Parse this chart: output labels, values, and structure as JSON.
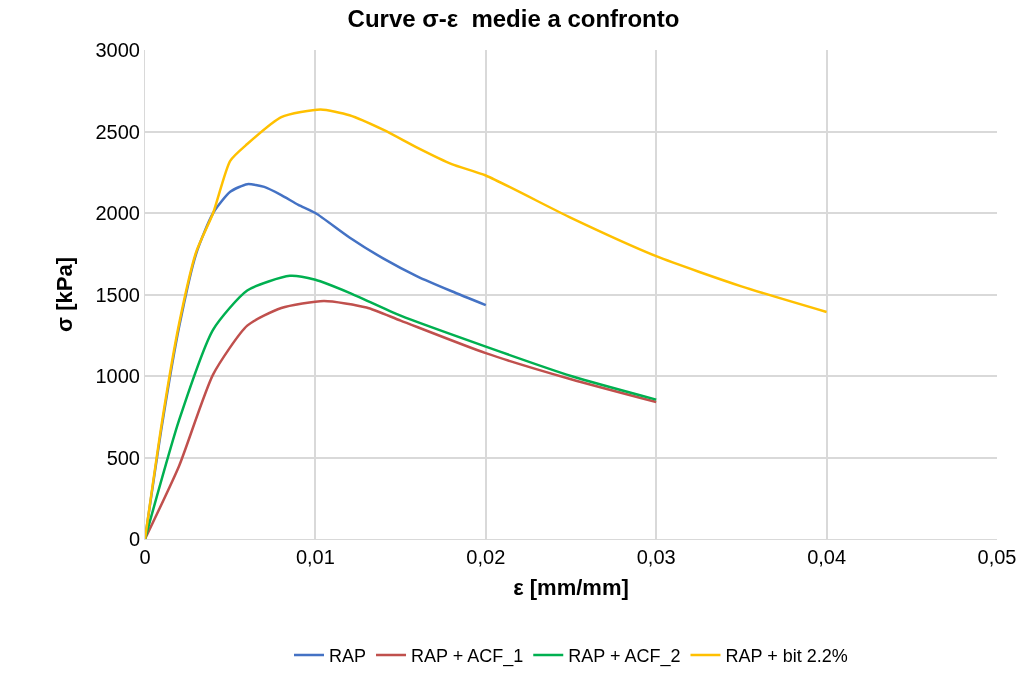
{
  "chart_data": {
    "type": "line",
    "title": "Curve σ-ε  medie a confronto",
    "xlabel": "ε [mm/mm]",
    "ylabel": "σ [kPa]",
    "xlim": [
      0,
      0.05
    ],
    "xticks": [
      0,
      {
        "value": 0.01,
        "label": "0,01"
      },
      {
        "value": 0.02,
        "label": "0,02"
      },
      {
        "value": 0.03,
        "label": "0,03"
      },
      {
        "value": 0.04,
        "label": "0,04"
      },
      {
        "value": 0.05,
        "label": "0,05"
      }
    ],
    "ylim": [
      0,
      3000
    ],
    "yticks": [
      0,
      500,
      1000,
      1500,
      2000,
      2500,
      3000
    ],
    "grid": true,
    "legend": "bottom",
    "marker": "none",
    "line_style": "solid",
    "series": [
      {
        "name": "RAP",
        "color": "#4472c4",
        "x": [
          0,
          0.001,
          0.002,
          0.003,
          0.004,
          0.005,
          0.006,
          0.007,
          0.008,
          0.009,
          0.01,
          0.012,
          0.014,
          0.016,
          0.018,
          0.02
        ],
        "values": [
          0,
          700,
          1300,
          1750,
          2000,
          2130,
          2177,
          2160,
          2110,
          2050,
          2000,
          1850,
          1720,
          1610,
          1520,
          1435
        ]
      },
      {
        "name": "RAP + ACF_1",
        "color": "#c0504d",
        "x": [
          0,
          0.002,
          0.004,
          0.006,
          0.008,
          0.0105,
          0.013,
          0.015,
          0.02,
          0.025,
          0.03
        ],
        "values": [
          0,
          448,
          1010,
          1309,
          1417,
          1460,
          1420,
          1340,
          1140,
          980,
          840
        ]
      },
      {
        "name": "RAP + ACF_2",
        "color": "#00b050",
        "x": [
          0,
          0.002,
          0.004,
          0.006,
          0.0085,
          0.01,
          0.012,
          0.015,
          0.02,
          0.025,
          0.03
        ],
        "values": [
          0,
          729,
          1285,
          1525,
          1615,
          1590,
          1510,
          1370,
          1180,
          1000,
          855
        ]
      },
      {
        "name": "RAP + bit 2.2%",
        "color": "#ffc000",
        "x": [
          0,
          0.001,
          0.002,
          0.003,
          0.004,
          0.005,
          0.006,
          0.008,
          0.0103,
          0.012,
          0.014,
          0.016,
          0.018,
          0.02,
          0.025,
          0.03,
          0.035,
          0.04
        ],
        "values": [
          0,
          720,
          1320,
          1760,
          2000,
          2320,
          2423,
          2588,
          2635,
          2600,
          2510,
          2400,
          2300,
          2230,
          1970,
          1735,
          1550,
          1393
        ]
      }
    ]
  }
}
